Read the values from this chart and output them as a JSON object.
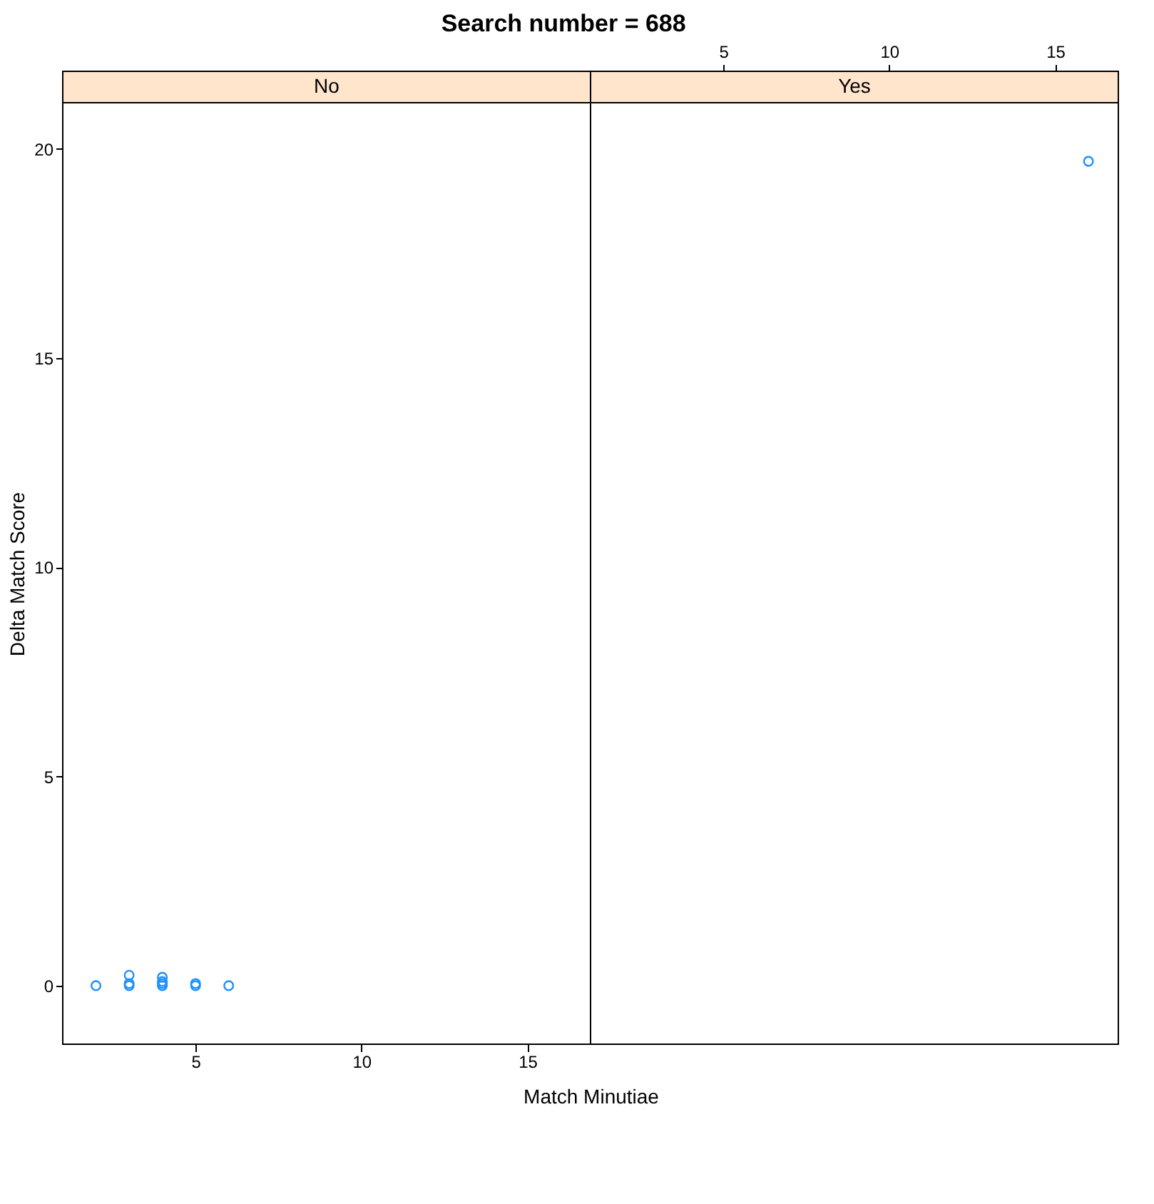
{
  "chart_data": [
    {
      "type": "scatter",
      "title": "Search number = 688",
      "subtitle": "No",
      "xlabel": "Match Minutiae",
      "ylabel": "Delta Match Score",
      "marker": "circle",
      "grid": false,
      "x": [
        2,
        3,
        3,
        3,
        4,
        4,
        4,
        4,
        5,
        5,
        6
      ],
      "series": [
        {
          "color": "#1e90ff",
          "values": [
            0,
            0.25,
            0.05,
            0,
            0.2,
            0.1,
            0.05,
            0,
            0.05,
            0,
            0
          ]
        }
      ],
      "xlim": [
        1.0,
        16.9
      ],
      "xticks": [
        5,
        10,
        15
      ],
      "ylim": [
        -1.4,
        21.1
      ],
      "yticks": [
        0,
        5,
        10,
        15,
        20
      ]
    },
    {
      "type": "scatter",
      "subtitle": "Yes",
      "marker": "circle",
      "grid": false,
      "tick_labels": "x",
      "x": [
        16
      ],
      "series": [
        {
          "color": "#1e90ff",
          "values": [
            19.7
          ]
        }
      ],
      "xlim": [
        1.0,
        16.9
      ],
      "xticks": [
        5,
        10,
        15
      ],
      "ylim": [
        -1.4,
        21.1
      ],
      "yticks": [
        0,
        5,
        10,
        15,
        20
      ]
    }
  ]
}
